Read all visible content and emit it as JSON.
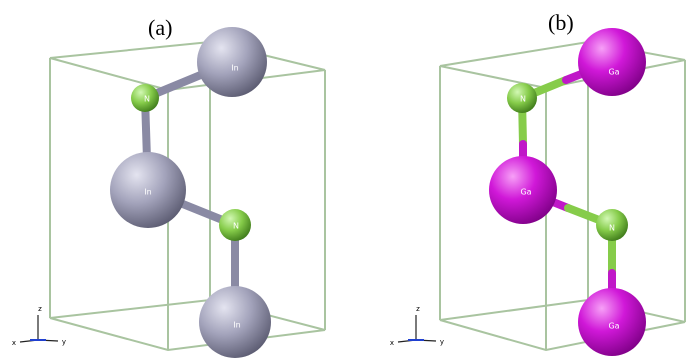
{
  "panels": [
    {
      "label": "(a)",
      "atoms": [
        {
          "label": "In"
        },
        {
          "label": "N"
        },
        {
          "label": "In"
        },
        {
          "label": "N"
        },
        {
          "label": "In"
        }
      ],
      "axes": {
        "z": "z",
        "x": "x",
        "y": "y"
      }
    },
    {
      "label": "(b)",
      "atoms": [
        {
          "label": "Ga"
        },
        {
          "label": "N"
        },
        {
          "label": "Ga"
        },
        {
          "label": "N"
        },
        {
          "label": "Ga"
        }
      ],
      "axes": {
        "z": "z",
        "x": "x",
        "y": "y"
      }
    }
  ]
}
